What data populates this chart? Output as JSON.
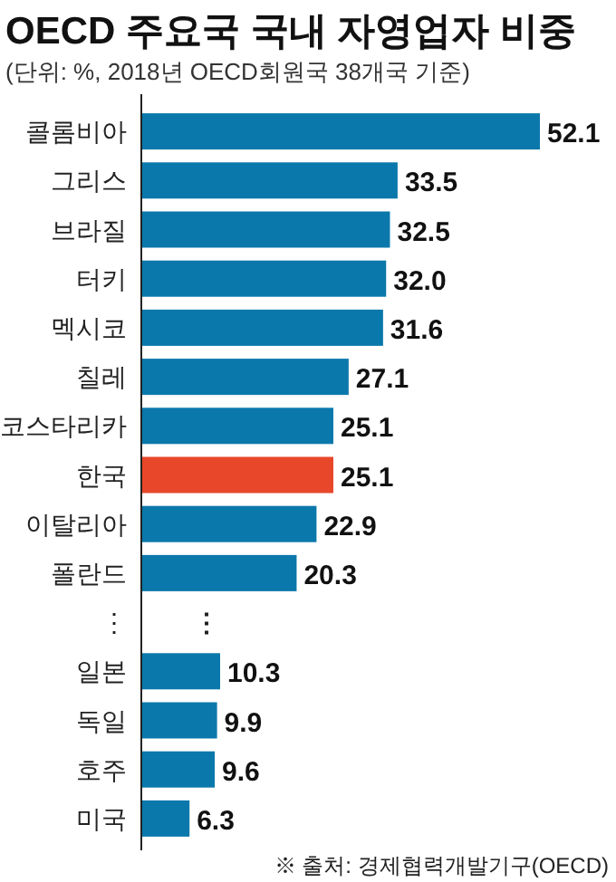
{
  "chart_data": {
    "type": "bar",
    "orientation": "horizontal",
    "title": "OECD 주요국 국내 자영업자 비중",
    "subtitle": "(단위: %, 2018년 OECD회원국 38개국 기준)",
    "categories": [
      "콜롬비아",
      "그리스",
      "브라질",
      "터키",
      "멕시코",
      "칠레",
      "코스타리카",
      "한국",
      "이탈리아",
      "폴란드",
      "⋮",
      "일본",
      "독일",
      "호주",
      "미국"
    ],
    "values": [
      52.1,
      33.5,
      32.5,
      32.0,
      31.6,
      27.1,
      25.1,
      25.1,
      22.9,
      20.3,
      null,
      10.3,
      9.9,
      9.6,
      6.3
    ],
    "value_labels": [
      "52.1",
      "33.5",
      "32.5",
      "32.0",
      "31.6",
      "27.1",
      "25.1",
      "25.1",
      "22.9",
      "20.3",
      null,
      "10.3",
      "9.9",
      "9.6",
      "6.3"
    ],
    "colors": [
      "#0b78ab",
      "#0b78ab",
      "#0b78ab",
      "#0b78ab",
      "#0b78ab",
      "#0b78ab",
      "#0b78ab",
      "#e8472a",
      "#0b78ab",
      "#0b78ab",
      null,
      "#0b78ab",
      "#0b78ab",
      "#0b78ab",
      "#0b78ab"
    ],
    "annotations": [
      "⋮",
      "※ 출처: 경제협력개발기구(OECD)"
    ]
  }
}
